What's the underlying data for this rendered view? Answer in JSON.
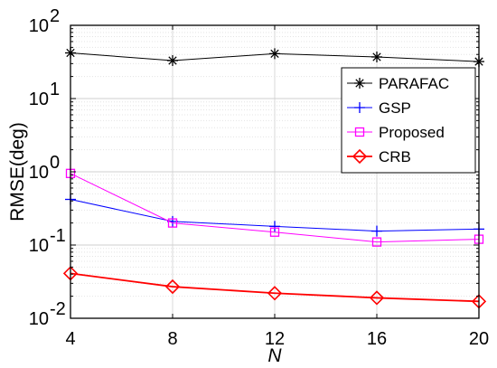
{
  "chart_data": {
    "type": "line",
    "xlabel": "N",
    "ylabel": "RMSE(deg)",
    "x": [
      4,
      8,
      12,
      16,
      20
    ],
    "xlim": [
      4,
      20
    ],
    "xticks": [
      "4",
      "8",
      "12",
      "16",
      "20"
    ],
    "ylim": [
      0.01,
      100
    ],
    "yscale": "log",
    "yticks": [
      {
        "value": 0.01,
        "base": "10",
        "exp": "-2"
      },
      {
        "value": 0.1,
        "base": "10",
        "exp": "-1"
      },
      {
        "value": 1,
        "base": "10",
        "exp": "0"
      },
      {
        "value": 10,
        "base": "10",
        "exp": "1"
      },
      {
        "value": 100,
        "base": "10",
        "exp": "2"
      }
    ],
    "grid": true,
    "legend_position": "top-right",
    "series": [
      {
        "name": "PARAFAC",
        "color": "#000000",
        "marker": "asterisk",
        "values": [
          42,
          33,
          41,
          37,
          32
        ]
      },
      {
        "name": "GSP",
        "color": "#0000ff",
        "marker": "plus",
        "values": [
          0.42,
          0.21,
          0.18,
          0.155,
          0.165
        ]
      },
      {
        "name": "Proposed",
        "color": "#ff00ff",
        "marker": "square",
        "values": [
          0.95,
          0.2,
          0.15,
          0.11,
          0.12
        ]
      },
      {
        "name": "CRB",
        "color": "#ff0000",
        "marker": "diamond",
        "values": [
          0.041,
          0.027,
          0.022,
          0.019,
          0.017
        ]
      }
    ]
  }
}
